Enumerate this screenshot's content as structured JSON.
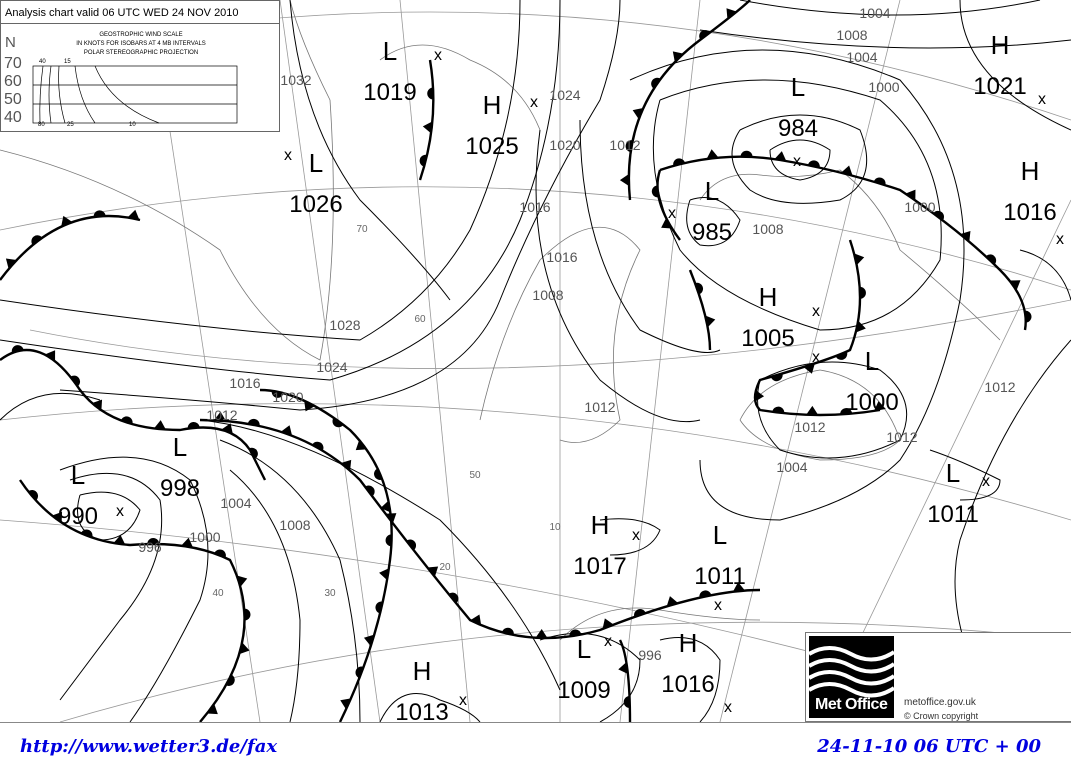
{
  "header": {
    "title": "Analysis chart valid 06 UTC WED 24 NOV 2010",
    "scale_title": "GEOSTROPHIC WIND SCALE",
    "scale_sub": "IN KNOTS FOR ISOBARS AT  4 MB INTERVALS",
    "projection": "POLAR STEREOGRAPHIC PROJECTION",
    "lat_label": "N",
    "lats": [
      "70",
      "60",
      "50",
      "40"
    ],
    "speeds_top": [
      "40",
      "15"
    ],
    "speeds_bottom": [
      "80",
      "25",
      "10"
    ]
  },
  "pressure_centers": [
    {
      "type": "L",
      "value": "1019"
    },
    {
      "type": "L",
      "value": "1026"
    },
    {
      "type": "H",
      "value": "1025"
    },
    {
      "type": "L",
      "value": "984"
    },
    {
      "type": "L",
      "value": "985"
    },
    {
      "type": "H",
      "value": "1005"
    },
    {
      "type": "L",
      "value": "1000"
    },
    {
      "type": "H",
      "value": "1021"
    },
    {
      "type": "H",
      "value": "1016"
    },
    {
      "type": "L",
      "value": "998"
    },
    {
      "type": "L",
      "value": "990"
    },
    {
      "type": "H",
      "value": "1017"
    },
    {
      "type": "L",
      "value": "1011"
    },
    {
      "type": "L",
      "value": "1011"
    },
    {
      "type": "L",
      "value": "1009"
    },
    {
      "type": "H",
      "value": "1016"
    },
    {
      "type": "H",
      "value": "1013"
    }
  ],
  "isobar_labels": [
    "1032",
    "1028",
    "1024",
    "1020",
    "1016",
    "1012",
    "1008",
    "1004",
    "1000",
    "996",
    "1016",
    "1012",
    "1008",
    "1004",
    "1000",
    "1012",
    "1012",
    "1024",
    "1020",
    "1016",
    "1012",
    "1008",
    "1004",
    "1000",
    "996",
    "1012",
    "1008",
    "1004"
  ],
  "latitude_labels": [
    "70",
    "60",
    "50",
    "40",
    "30",
    "20",
    "10"
  ],
  "logo": {
    "brand": "Met Office",
    "site": "metoffice.gov.uk",
    "copyright": "©  Crown copyright"
  },
  "footer": {
    "url": "http://www.wetter3.de/fax",
    "valid": "24-11-10 06 UTC + 00"
  },
  "colors": {
    "footer_text": "#0000e0",
    "lines": "#000000",
    "grid": "#888888"
  }
}
